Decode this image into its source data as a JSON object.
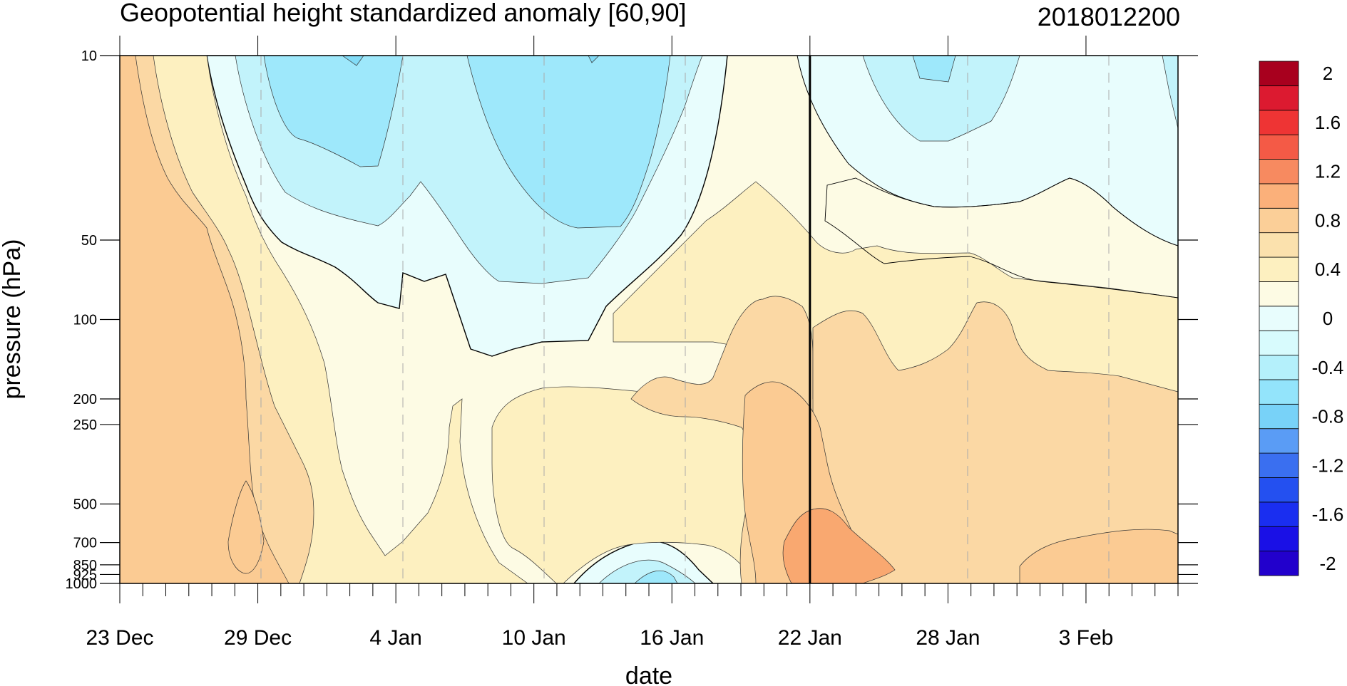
{
  "chart_data": {
    "type": "heatmap",
    "title": "Geopotential height standardized anomaly [60,90]",
    "title_right": "2018012200",
    "xlabel": "date",
    "ylabel": "pressure (hPa)",
    "y_scale": "log (inverted)",
    "ylim": [
      1000,
      10
    ],
    "y_ticks": [
      "10",
      "50",
      "100",
      "200",
      "250",
      "500",
      "700",
      "850",
      "925",
      "1000"
    ],
    "x_ticks": [
      "23 Dec",
      "29 Dec",
      "4 Jan",
      "10 Jan",
      "16 Jan",
      "22 Jan",
      "28 Jan",
      "3 Feb"
    ],
    "x_range": [
      "2017-12-23",
      "2018-02-07"
    ],
    "reference_line": "2018-01-22",
    "colorbar": {
      "levels": [
        -2,
        -1.8,
        -1.6,
        -1.4,
        -1.2,
        -1,
        -0.8,
        -0.6,
        -0.4,
        -0.2,
        0,
        0.2,
        0.4,
        0.6,
        0.8,
        1,
        1.2,
        1.4,
        1.6,
        1.8,
        2
      ],
      "tick_labels": [
        "2",
        "1.6",
        "1.2",
        "0.8",
        "0.4",
        "0",
        "-0.4",
        "-0.8",
        "-1.2",
        "-1.6",
        "-2"
      ],
      "colors_low_to_high": [
        "#2200cc",
        "#1a10e6",
        "#1a2ef0",
        "#2450f0",
        "#3a6ff0",
        "#5a9cf5",
        "#78d2f8",
        "#93e4fb",
        "#b4f0fb",
        "#d8fbfd",
        "#e8fdfd",
        "#fdfbe4",
        "#fdf0c0",
        "#fbe1ad",
        "#fbcf98",
        "#fbb07a",
        "#f78a60",
        "#f45a46",
        "#ee3434",
        "#dc1a30",
        "#a8001e"
      ]
    },
    "fill_colors": {
      "neg_0_2": "#e8fdfd",
      "neg_0_4": "#c2f3fb",
      "neg_0_6": "#9ee8fb",
      "neg_0_8": "#82dcf7",
      "pos_0_0": "#fdfbe4",
      "pos_0_2": "#fdf0c0",
      "pos_0_4": "#fbd8a4",
      "pos_0_6": "#fbcb93",
      "pos_0_8": "#f9a870"
    }
  }
}
